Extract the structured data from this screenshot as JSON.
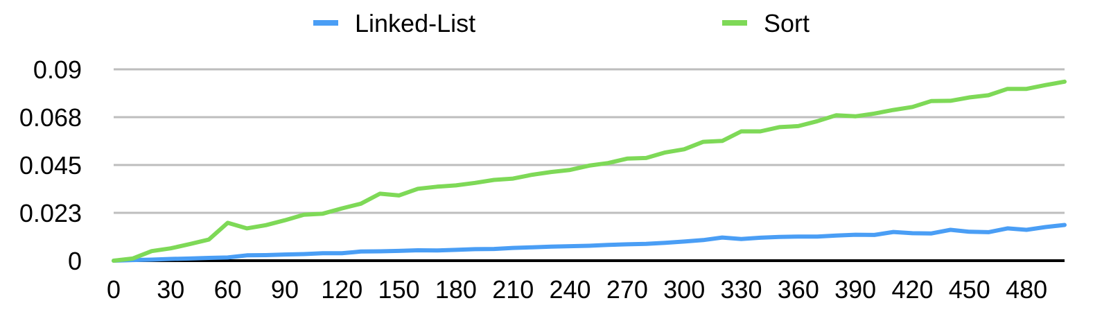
{
  "chart_data": {
    "type": "line",
    "title": "",
    "xlabel": "",
    "ylabel": "",
    "x": [
      0,
      10,
      20,
      30,
      40,
      50,
      60,
      70,
      80,
      90,
      100,
      110,
      120,
      130,
      140,
      150,
      160,
      170,
      180,
      190,
      200,
      210,
      220,
      230,
      240,
      250,
      260,
      270,
      280,
      290,
      300,
      310,
      320,
      330,
      340,
      350,
      360,
      370,
      380,
      390,
      400,
      410,
      420,
      430,
      440,
      450,
      460,
      470,
      480,
      490,
      500
    ],
    "x_ticks": [
      0,
      30,
      60,
      90,
      120,
      150,
      180,
      210,
      240,
      270,
      300,
      330,
      360,
      390,
      420,
      450,
      480
    ],
    "x_tick_labels": [
      "0",
      "30",
      "60",
      "90",
      "120",
      "150",
      "180",
      "210",
      "240",
      "270",
      "300",
      "330",
      "360",
      "390",
      "420",
      "450",
      "480"
    ],
    "xlim": [
      0,
      500
    ],
    "y_ticks": [
      0,
      0.0225,
      0.045,
      0.0675,
      0.09
    ],
    "y_tick_labels": [
      "0",
      "0.023",
      "0.045",
      "0.068",
      "0.09"
    ],
    "ylim": [
      0,
      0.09
    ],
    "grid": "horizontal",
    "legend_position": "top",
    "series": [
      {
        "name": "Linked-List",
        "color": "#4A9EF5",
        "values": [
          0,
          0.0003,
          0.0005,
          0.0008,
          0.001,
          0.0013,
          0.0015,
          0.0025,
          0.0026,
          0.0029,
          0.0031,
          0.0035,
          0.0035,
          0.0043,
          0.0044,
          0.0046,
          0.0049,
          0.0048,
          0.0051,
          0.0054,
          0.0055,
          0.006,
          0.0063,
          0.0066,
          0.0068,
          0.007,
          0.0074,
          0.0077,
          0.0079,
          0.0084,
          0.009,
          0.0097,
          0.0109,
          0.0102,
          0.0108,
          0.0112,
          0.0113,
          0.0113,
          0.0118,
          0.0122,
          0.0121,
          0.0135,
          0.0129,
          0.0128,
          0.0145,
          0.0136,
          0.0134,
          0.0152,
          0.0145,
          0.0158,
          0.0168
        ]
      },
      {
        "name": "Sort",
        "color": "#7ED957",
        "values": [
          0,
          0.001,
          0.0045,
          0.0058,
          0.0078,
          0.0099,
          0.0178,
          0.0152,
          0.0167,
          0.019,
          0.0216,
          0.0221,
          0.0246,
          0.0268,
          0.0315,
          0.0307,
          0.0338,
          0.0348,
          0.0354,
          0.0366,
          0.038,
          0.0386,
          0.0404,
          0.0417,
          0.0427,
          0.0447,
          0.0459,
          0.048,
          0.0483,
          0.0509,
          0.0524,
          0.0559,
          0.0563,
          0.0608,
          0.0608,
          0.0628,
          0.0633,
          0.0656,
          0.0684,
          0.0679,
          0.0692,
          0.0709,
          0.0723,
          0.0751,
          0.0752,
          0.0768,
          0.0778,
          0.0808,
          0.0808,
          0.0826,
          0.0842
        ]
      }
    ]
  }
}
